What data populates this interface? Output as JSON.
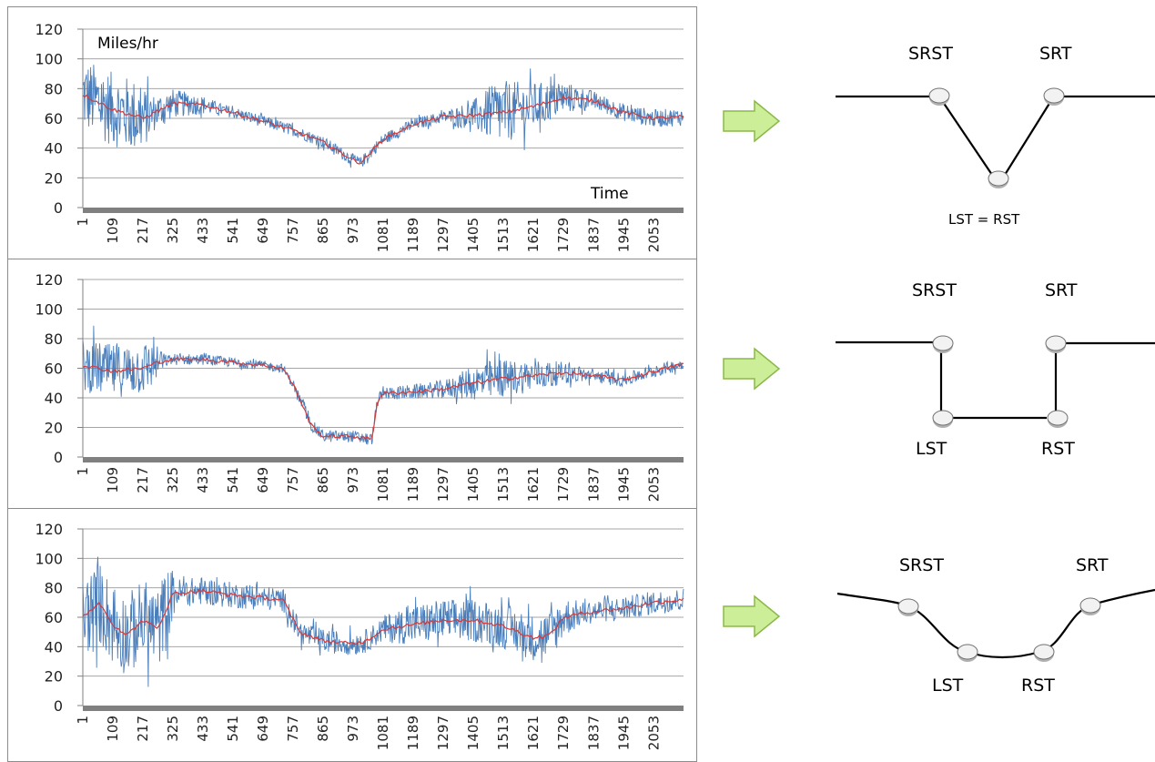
{
  "colors": {
    "raw_series": "#4a7ebb",
    "smoothed_series": "#d43a3a",
    "gridline": "#a6a6a6",
    "x_axis_bar": "#808080",
    "arrow_fill": "#ccee99",
    "arrow_stroke": "#8cb84a",
    "node_fill": "#e8e8e8",
    "line": "#000000"
  },
  "chart_data": [
    {
      "type": "line",
      "ylabel": "Miles/hr",
      "xlabel": "Time",
      "ylim": [
        0,
        120
      ],
      "y_ticks": [
        "0",
        "20",
        "40",
        "60",
        "80",
        "100",
        "120"
      ],
      "x_ticks": [
        "1",
        "109",
        "217",
        "325",
        "433",
        "541",
        "649",
        "757",
        "865",
        "973",
        "1081",
        "1189",
        "1297",
        "1405",
        "1513",
        "1621",
        "1729",
        "1837",
        "1945",
        "2053"
      ],
      "xlim": [
        1,
        2160
      ],
      "grid": true,
      "series": [
        {
          "points": [
            [
              1,
              76
            ],
            [
              109,
              66
            ],
            [
              217,
              60
            ],
            [
              325,
              70
            ],
            [
              433,
              69
            ],
            [
              541,
              64
            ],
            [
              649,
              58
            ],
            [
              757,
              52
            ],
            [
              865,
              44
            ],
            [
              973,
              32
            ],
            [
              1000,
              30
            ],
            [
              1081,
              46
            ],
            [
              1189,
              56
            ],
            [
              1297,
              61
            ],
            [
              1405,
              62
            ],
            [
              1513,
              64
            ],
            [
              1621,
              68
            ],
            [
              1729,
              74
            ],
            [
              1837,
              72
            ],
            [
              1945,
              64
            ],
            [
              2053,
              60
            ],
            [
              2160,
              61
            ]
          ],
          "noise": [
            [
              1,
              25
            ],
            [
              200,
              25
            ],
            [
              260,
              12
            ],
            [
              500,
              4
            ],
            [
              1300,
              4
            ],
            [
              1400,
              10
            ],
            [
              1500,
              22
            ],
            [
              1750,
              10
            ],
            [
              1850,
              6
            ],
            [
              2160,
              6
            ]
          ]
        }
      ]
    },
    {
      "type": "line",
      "ylim": [
        0,
        120
      ],
      "y_ticks": [
        "0",
        "20",
        "40",
        "60",
        "80",
        "100",
        "120"
      ],
      "x_ticks": [
        "1",
        "109",
        "217",
        "325",
        "433",
        "541",
        "649",
        "757",
        "865",
        "973",
        "1081",
        "1189",
        "1297",
        "1405",
        "1513",
        "1621",
        "1729",
        "1837",
        "1945",
        "2053"
      ],
      "xlim": [
        1,
        2160
      ],
      "grid": true,
      "series": [
        {
          "points": [
            [
              1,
              62
            ],
            [
              109,
              58
            ],
            [
              217,
              60
            ],
            [
              270,
              64
            ],
            [
              325,
              66
            ],
            [
              433,
              66
            ],
            [
              541,
              64
            ],
            [
              649,
              62
            ],
            [
              720,
              60
            ],
            [
              760,
              48
            ],
            [
              820,
              22
            ],
            [
              865,
              14
            ],
            [
              973,
              14
            ],
            [
              1040,
              12
            ],
            [
              1060,
              38
            ],
            [
              1081,
              43
            ],
            [
              1189,
              44
            ],
            [
              1297,
              46
            ],
            [
              1405,
              50
            ],
            [
              1513,
              53
            ],
            [
              1621,
              55
            ],
            [
              1729,
              57
            ],
            [
              1837,
              55
            ],
            [
              1945,
              52
            ],
            [
              2053,
              58
            ],
            [
              2160,
              63
            ]
          ],
          "noise": [
            [
              1,
              18
            ],
            [
              240,
              18
            ],
            [
              300,
              4
            ],
            [
              700,
              3
            ],
            [
              740,
              3
            ],
            [
              800,
              4
            ],
            [
              1050,
              4
            ],
            [
              1300,
              6
            ],
            [
              1450,
              14
            ],
            [
              1650,
              10
            ],
            [
              1800,
              5
            ],
            [
              2160,
              4
            ]
          ]
        }
      ]
    },
    {
      "type": "line",
      "ylim": [
        0,
        120
      ],
      "y_ticks": [
        "0",
        "20",
        "40",
        "60",
        "80",
        "100",
        "120"
      ],
      "x_ticks": [
        "1",
        "109",
        "217",
        "325",
        "433",
        "541",
        "649",
        "757",
        "865",
        "973",
        "1081",
        "1189",
        "1297",
        "1405",
        "1513",
        "1621",
        "1729",
        "1837",
        "1945",
        "2053"
      ],
      "xlim": [
        1,
        2160
      ],
      "grid": true,
      "series": [
        {
          "points": [
            [
              1,
              60
            ],
            [
              60,
              70
            ],
            [
              109,
              55
            ],
            [
              160,
              48
            ],
            [
              217,
              58
            ],
            [
              270,
              52
            ],
            [
              325,
              76
            ],
            [
              433,
              78
            ],
            [
              541,
              75
            ],
            [
              649,
              73
            ],
            [
              720,
              72
            ],
            [
              780,
              50
            ],
            [
              865,
              44
            ],
            [
              973,
              42
            ],
            [
              1020,
              44
            ],
            [
              1081,
              52
            ],
            [
              1189,
              55
            ],
            [
              1297,
              58
            ],
            [
              1405,
              58
            ],
            [
              1460,
              56
            ],
            [
              1513,
              54
            ],
            [
              1621,
              46
            ],
            [
              1680,
              48
            ],
            [
              1729,
              60
            ],
            [
              1837,
              64
            ],
            [
              1945,
              66
            ],
            [
              2053,
              70
            ],
            [
              2160,
              72
            ]
          ],
          "noise": [
            [
              1,
              28
            ],
            [
              300,
              28
            ],
            [
              340,
              10
            ],
            [
              700,
              8
            ],
            [
              800,
              8
            ],
            [
              1050,
              8
            ],
            [
              1200,
              14
            ],
            [
              1700,
              16
            ],
            [
              1800,
              8
            ],
            [
              2160,
              8
            ]
          ]
        }
      ]
    }
  ],
  "diagrams": [
    {
      "labels": [
        "SRST",
        "SRT",
        "LST = RST"
      ]
    },
    {
      "labels": [
        "SRST",
        "SRT",
        "LST",
        "RST"
      ]
    },
    {
      "labels": [
        "SRST",
        "SRT",
        "LST",
        "RST"
      ]
    }
  ]
}
